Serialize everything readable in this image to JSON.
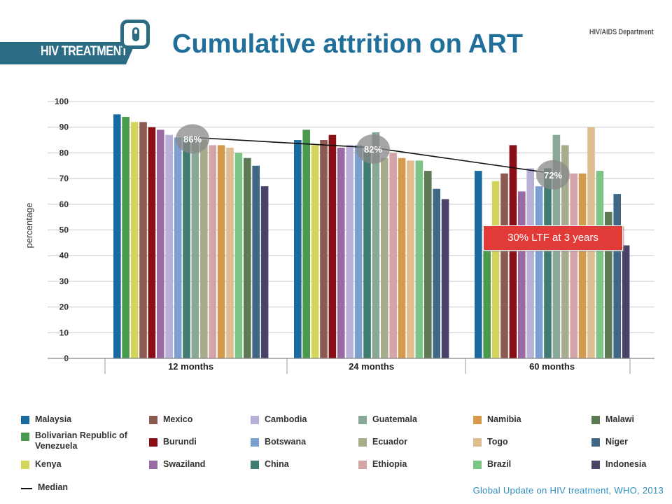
{
  "header": {
    "logo_text": "HIV TREATMENT",
    "title": "Cumulative attrition on ART",
    "department": "HIV/AIDS Department"
  },
  "callout": {
    "text": "30% LTF at 3 years"
  },
  "source": {
    "text": "Global Update on HIV treatment, WHO, 2013"
  },
  "chart_data": {
    "type": "bar",
    "title": "",
    "ylabel": "percentage",
    "xlabel": "",
    "ylim": [
      0,
      100
    ],
    "yticks": [
      0,
      10,
      20,
      30,
      40,
      50,
      60,
      70,
      80,
      90,
      100
    ],
    "grid": true,
    "categories": [
      "12 months",
      "24 months",
      "60 months"
    ],
    "series": [
      {
        "name": "Malaysia",
        "color": "#1a6aa0",
        "values": [
          95,
          85,
          73
        ]
      },
      {
        "name": "Bolivarian Republic of Venezuela",
        "color": "#4a9a4e",
        "values": [
          94,
          89,
          44
        ]
      },
      {
        "name": "Kenya",
        "color": "#d4d45c",
        "values": [
          92,
          83,
          69
        ]
      },
      {
        "name": "Mexico",
        "color": "#8d5a52",
        "values": [
          92,
          85,
          72
        ]
      },
      {
        "name": "Burundi",
        "color": "#8a0e16",
        "values": [
          90,
          87,
          83
        ]
      },
      {
        "name": "Swaziland",
        "color": "#9a6aa4",
        "values": [
          89,
          82,
          65
        ]
      },
      {
        "name": "Cambodia",
        "color": "#b9b0d8",
        "values": [
          87,
          83,
          74
        ]
      },
      {
        "name": "Botswana",
        "color": "#7ba0cf",
        "values": [
          86,
          83,
          67
        ]
      },
      {
        "name": "China",
        "color": "#3f7d72",
        "values": [
          86,
          81,
          74
        ]
      },
      {
        "name": "Guatemala",
        "color": "#8aa898",
        "values": [
          86,
          88,
          87
        ]
      },
      {
        "name": "Ecuador",
        "color": "#a8ab8c",
        "values": [
          85,
          78,
          83
        ]
      },
      {
        "name": "Ethiopia",
        "color": "#d4a4a8",
        "values": [
          83,
          80,
          72
        ]
      },
      {
        "name": "Namibia",
        "color": "#d49a4e",
        "values": [
          83,
          78,
          72
        ]
      },
      {
        "name": "Togo",
        "color": "#e0bd90",
        "values": [
          82,
          77,
          90
        ]
      },
      {
        "name": "Brazil",
        "color": "#7cc487",
        "values": [
          80,
          77,
          73
        ]
      },
      {
        "name": "Malawi",
        "color": "#5e7a54",
        "values": [
          78,
          73,
          57
        ]
      },
      {
        "name": "Niger",
        "color": "#3e6886",
        "values": [
          75,
          66,
          64
        ]
      },
      {
        "name": "Indonesia",
        "color": "#4a4268",
        "values": [
          67,
          62,
          44
        ]
      }
    ],
    "median": {
      "name": "Median",
      "values": [
        86,
        82,
        72
      ],
      "labels": [
        "86%",
        "82%",
        "72%"
      ]
    },
    "legend_position": "bottom"
  }
}
